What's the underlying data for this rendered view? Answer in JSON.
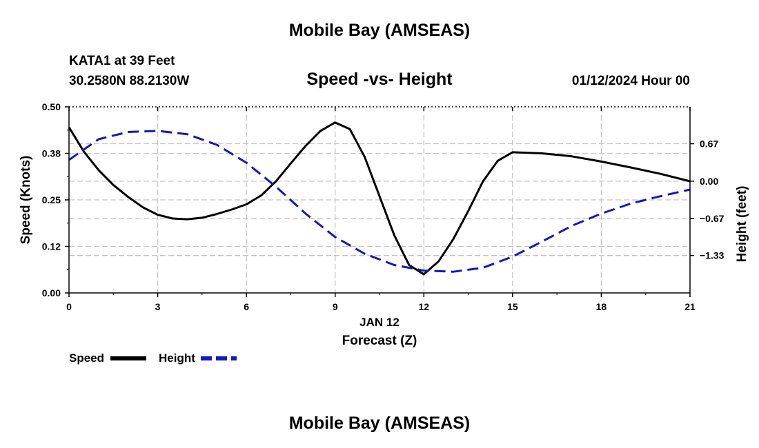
{
  "header": {
    "title": "Mobile Bay (AMSEAS)",
    "station": "KATA1 at 39 Feet",
    "coords": "30.2580N  88.2130W",
    "subtitle": "Speed -vs- Height",
    "datetime": "01/12/2024 Hour 00"
  },
  "footer": {
    "title": "Mobile Bay (AMSEAS)"
  },
  "chart_data": {
    "type": "line",
    "title": "Speed -vs- Height",
    "xlabel": "Forecast (Z)",
    "xsublabel": "JAN 12",
    "ylabel": "Speed (Knots)",
    "y2label": "Height (feet)",
    "xlim": [
      0,
      21
    ],
    "ylim": [
      0,
      0.5
    ],
    "y2lim": [
      -2.0,
      1.33
    ],
    "x_ticks": [
      0,
      3,
      6,
      9,
      12,
      15,
      18,
      21
    ],
    "x_tick_labels": [
      "0",
      "3",
      "6",
      "9",
      "12",
      "15",
      "18",
      "21"
    ],
    "y_ticks": [
      0,
      0.125,
      0.25,
      0.375,
      0.5
    ],
    "y_tick_labels": [
      "0.00",
      "0.12",
      "0.25",
      "0.38",
      "0.50"
    ],
    "y2_ticks": [
      0.67,
      0.0,
      -0.67,
      -1.33
    ],
    "y2_tick_labels": [
      "0.67",
      "0.00",
      "−0.67",
      "−1.33"
    ],
    "grid": true,
    "legend": "bottom-left",
    "series": [
      {
        "name": "Speed",
        "axis": "left",
        "color": "#000000",
        "dash": "solid",
        "x": [
          0,
          0.5,
          1,
          1.5,
          2,
          2.5,
          3,
          3.5,
          4,
          4.5,
          5,
          5.5,
          6,
          6.5,
          7,
          7.5,
          8,
          8.5,
          9,
          9.5,
          10,
          10.5,
          11,
          11.5,
          12,
          12.5,
          13,
          13.5,
          14,
          14.5,
          15,
          16,
          17,
          18,
          19,
          20,
          21
        ],
        "values": [
          0.445,
          0.38,
          0.33,
          0.29,
          0.258,
          0.23,
          0.21,
          0.2,
          0.198,
          0.202,
          0.212,
          0.224,
          0.238,
          0.262,
          0.3,
          0.348,
          0.395,
          0.435,
          0.458,
          0.44,
          0.365,
          0.26,
          0.155,
          0.075,
          0.05,
          0.085,
          0.145,
          0.22,
          0.3,
          0.355,
          0.378,
          0.375,
          0.367,
          0.353,
          0.337,
          0.32,
          0.3
        ]
      },
      {
        "name": "Height",
        "axis": "right",
        "color": "#1515c8",
        "dash": "dashed",
        "x": [
          0,
          1,
          2,
          3,
          4,
          5,
          6,
          7,
          8,
          9,
          10,
          11,
          12,
          13,
          14,
          15,
          16,
          17,
          18,
          19,
          20,
          21
        ],
        "values": [
          0.38,
          0.75,
          0.88,
          0.9,
          0.84,
          0.65,
          0.33,
          -0.1,
          -0.58,
          -1.0,
          -1.3,
          -1.5,
          -1.6,
          -1.62,
          -1.55,
          -1.35,
          -1.08,
          -0.8,
          -0.58,
          -0.4,
          -0.27,
          -0.15
        ]
      }
    ]
  }
}
